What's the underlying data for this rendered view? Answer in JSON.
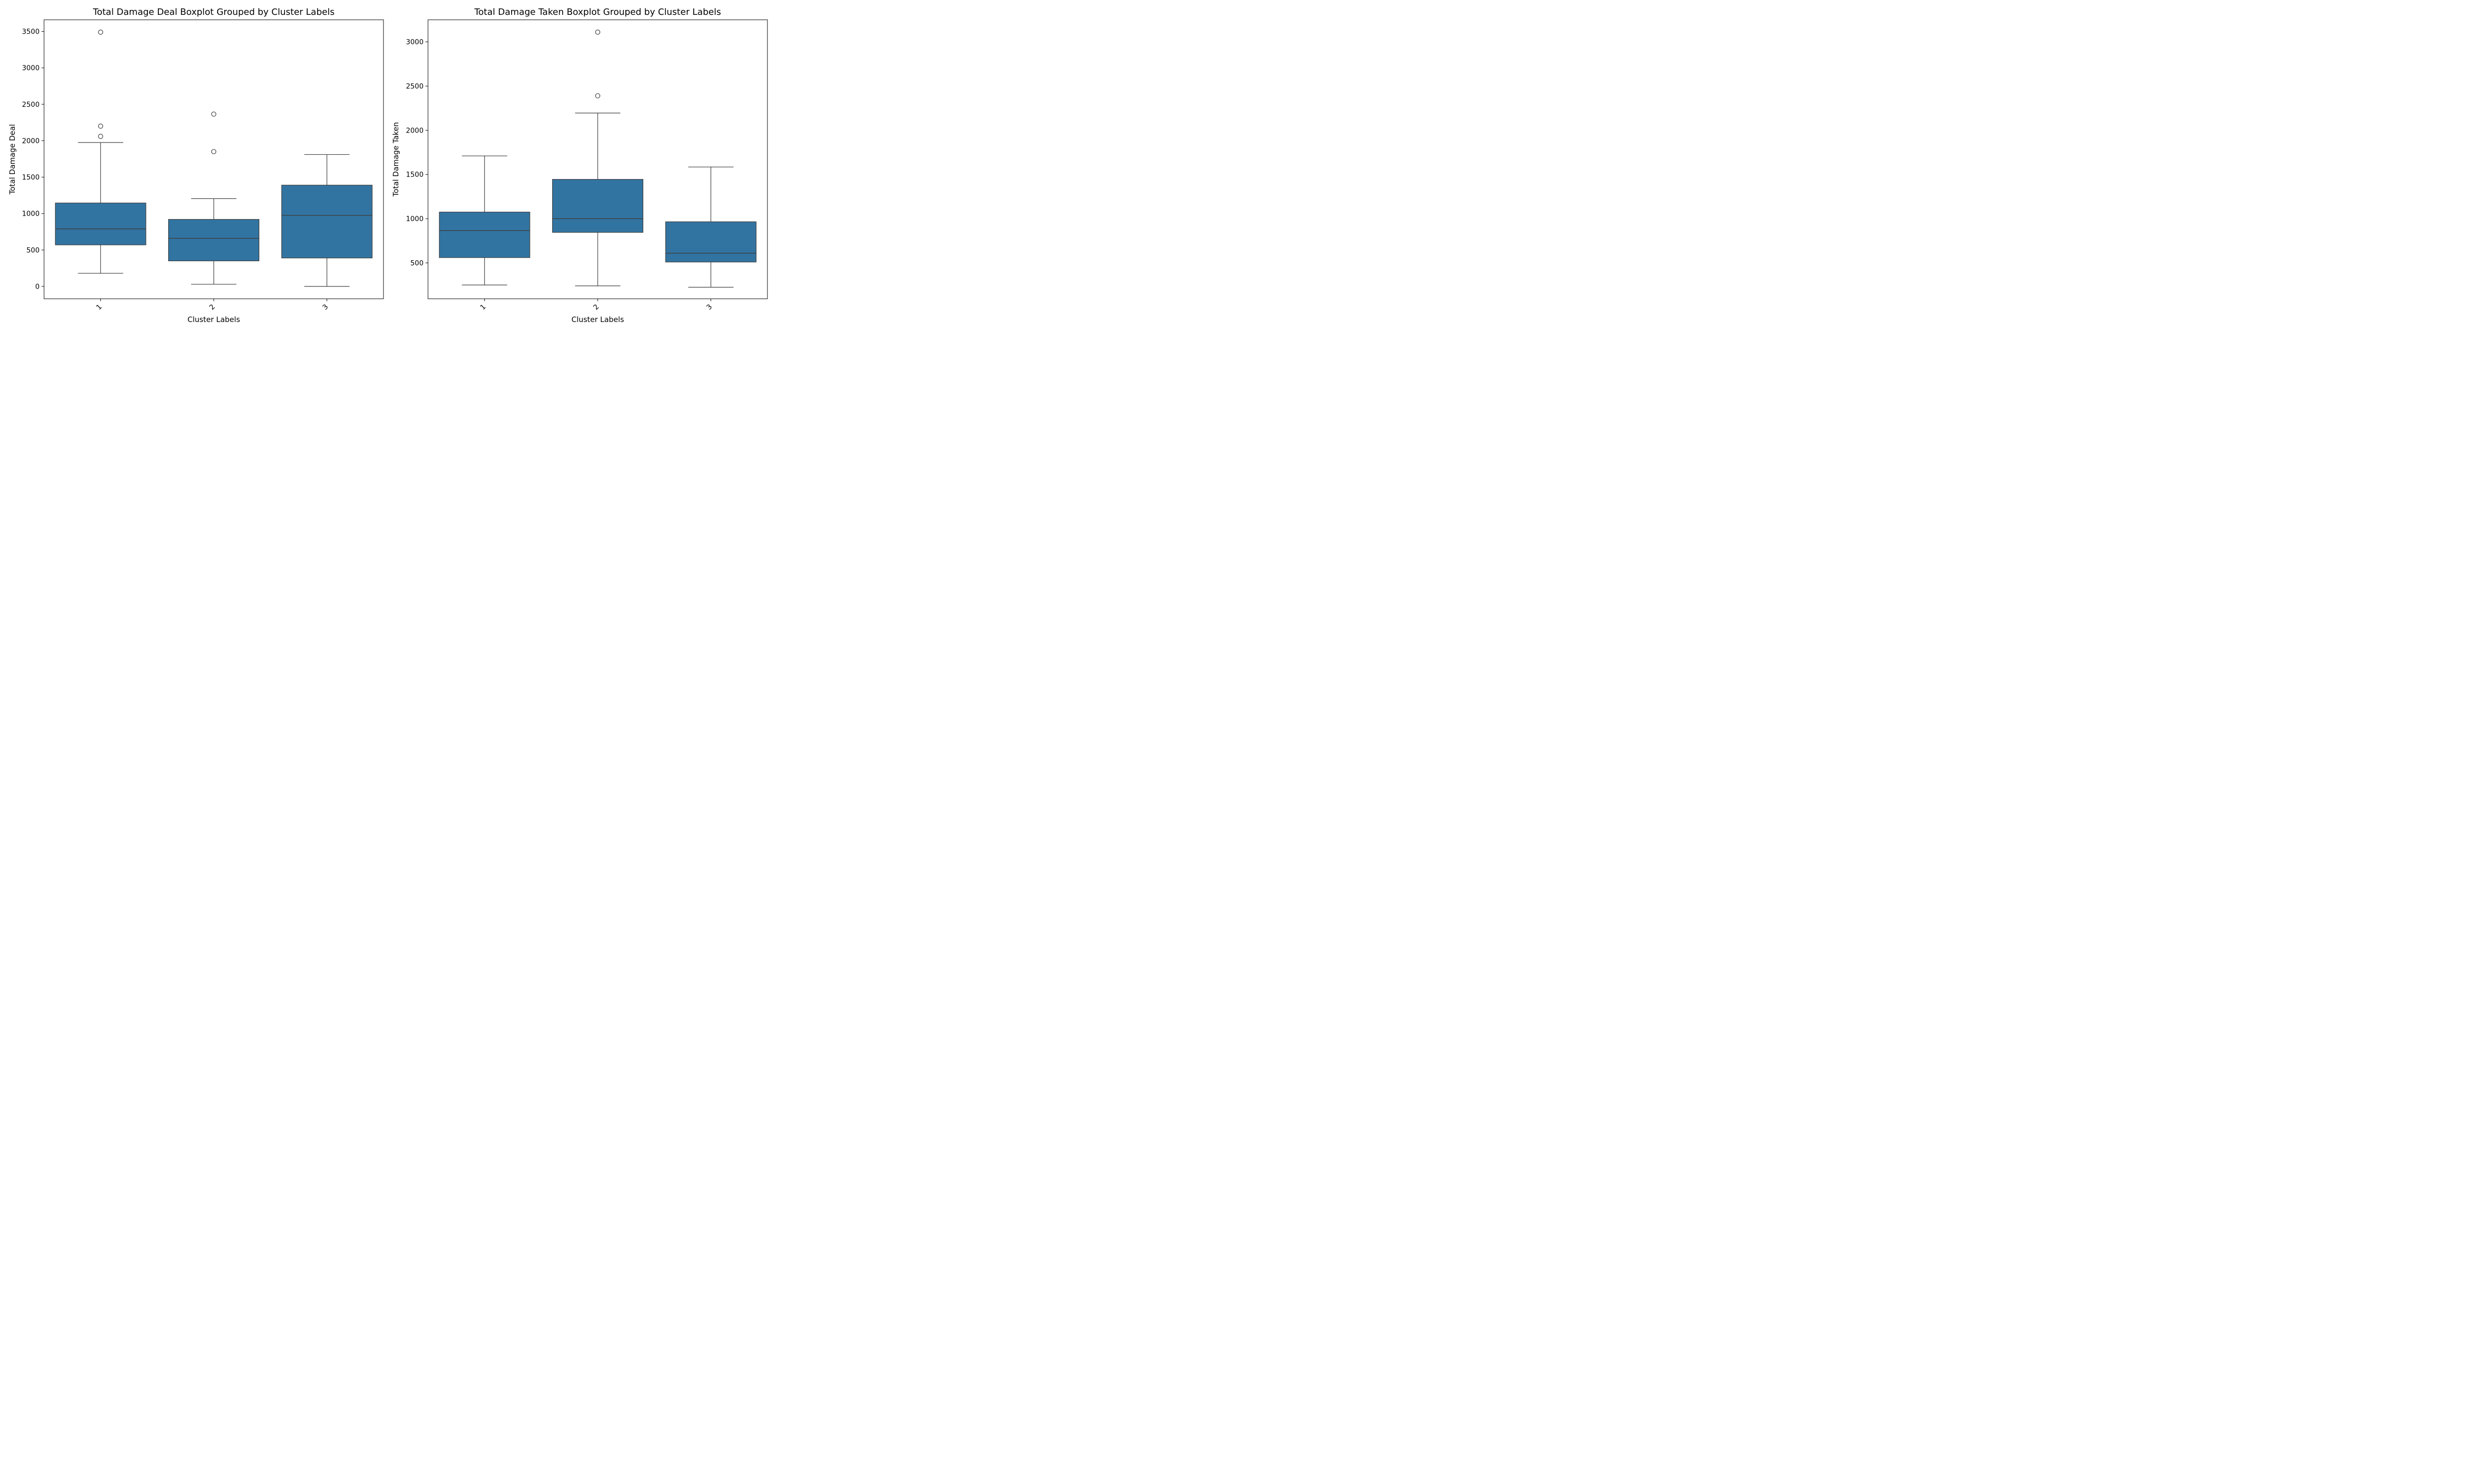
{
  "chart_data": [
    {
      "type": "boxplot",
      "title": "Total Damage Deal Boxplot Grouped by Cluster Labels",
      "xlabel": "Cluster Labels",
      "ylabel": "Total Damage Deal",
      "categories": [
        "1",
        "2",
        "3"
      ],
      "yticks": [
        0,
        500,
        1000,
        1500,
        2000,
        2500,
        3000,
        3500
      ],
      "ylim": [
        -170,
        3660
      ],
      "grid": false,
      "box_color": "#3274a1",
      "boxes": [
        {
          "category": "1",
          "whisker_low": 180,
          "q1": 570,
          "median": 790,
          "q3": 1145,
          "whisker_high": 1975,
          "outliers": [
            2060,
            2200,
            3490
          ]
        },
        {
          "category": "2",
          "whisker_low": 30,
          "q1": 350,
          "median": 660,
          "q3": 920,
          "whisker_high": 1205,
          "outliers": [
            1850,
            2365
          ]
        },
        {
          "category": "3",
          "whisker_low": 0,
          "q1": 390,
          "median": 975,
          "q3": 1390,
          "whisker_high": 1810,
          "outliers": []
        }
      ]
    },
    {
      "type": "boxplot",
      "title": "Total Damage Taken Boxplot Grouped by Cluster Labels",
      "xlabel": "Cluster Labels",
      "ylabel": "Total Damage Taken",
      "categories": [
        "1",
        "2",
        "3"
      ],
      "yticks": [
        500,
        1000,
        1500,
        2000,
        2500,
        3000
      ],
      "ylim": [
        94,
        3250
      ],
      "grid": false,
      "box_color": "#3274a1",
      "boxes": [
        {
          "category": "1",
          "whisker_low": 250,
          "q1": 560,
          "median": 865,
          "q3": 1075,
          "whisker_high": 1710,
          "outliers": []
        },
        {
          "category": "2",
          "whisker_low": 240,
          "q1": 845,
          "median": 1000,
          "q3": 1445,
          "whisker_high": 2195,
          "outliers": [
            2390,
            3110
          ]
        },
        {
          "category": "3",
          "whisker_low": 225,
          "q1": 510,
          "median": 610,
          "q3": 965,
          "whisker_high": 1585,
          "outliers": []
        }
      ]
    }
  ]
}
